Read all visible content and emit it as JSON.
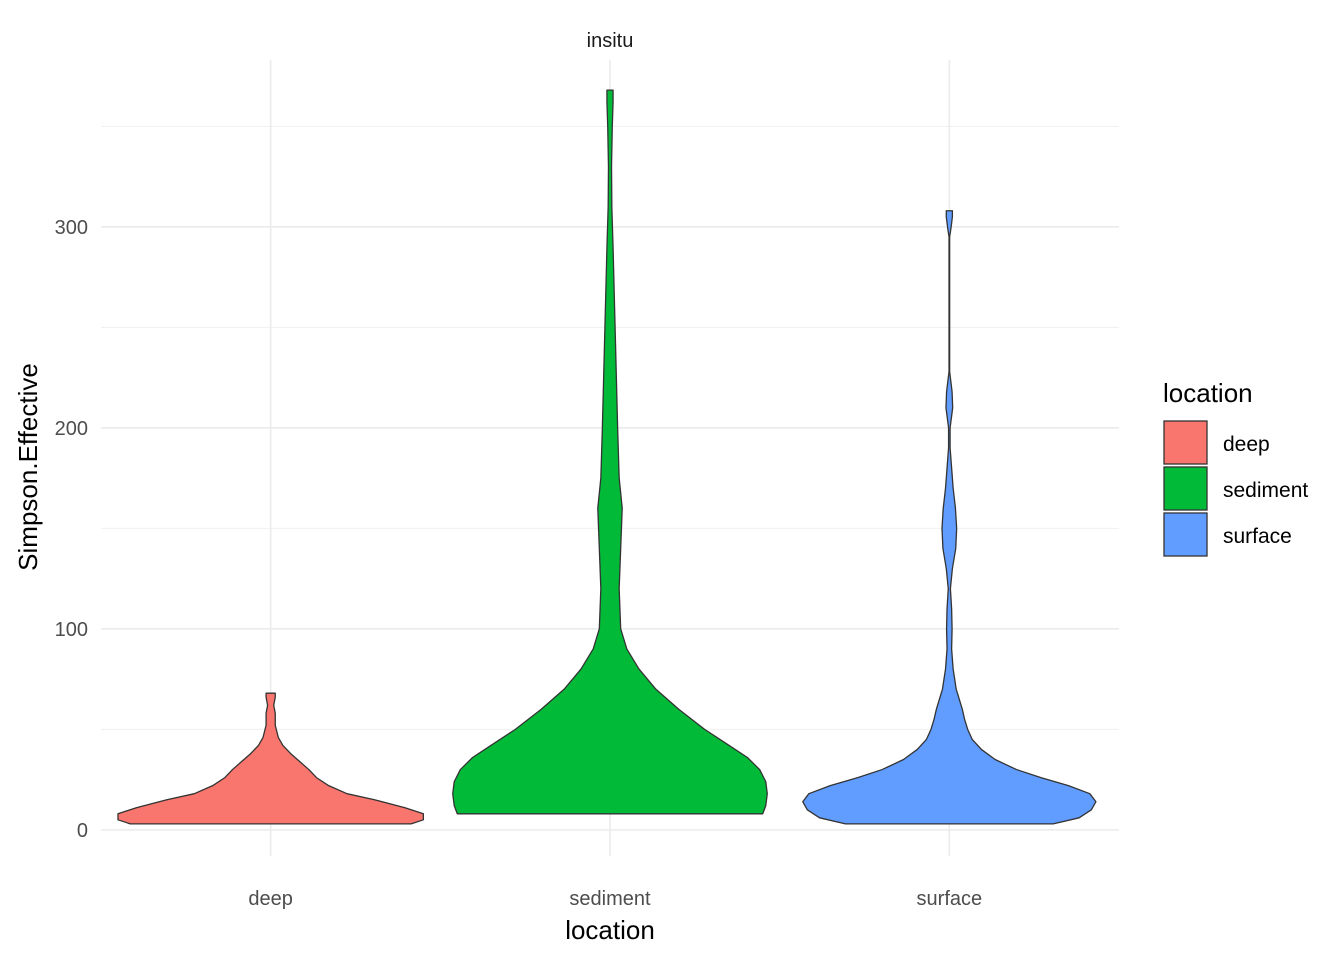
{
  "chart_data": {
    "type": "violin",
    "facet_title": "insitu",
    "xlabel": "location",
    "ylabel": "Simpson.Effective",
    "categories": [
      "deep",
      "sediment",
      "surface"
    ],
    "ylim": [
      -13,
      383
    ],
    "yticks": [
      0,
      100,
      200,
      300
    ],
    "grid": true,
    "legend": {
      "title": "location",
      "position": "right",
      "entries": [
        {
          "label": "deep",
          "color": "#F8766D"
        },
        {
          "label": "sediment",
          "color": "#00BA38"
        },
        {
          "label": "surface",
          "color": "#619CFF"
        }
      ]
    },
    "series": [
      {
        "name": "deep",
        "color": "#F8766D",
        "range": [
          3,
          68
        ],
        "density": [
          [
            3,
            0.92
          ],
          [
            5,
            1.0
          ],
          [
            8,
            1.0
          ],
          [
            11,
            0.88
          ],
          [
            15,
            0.68
          ],
          [
            18,
            0.5
          ],
          [
            22,
            0.38
          ],
          [
            26,
            0.3
          ],
          [
            30,
            0.25
          ],
          [
            34,
            0.19
          ],
          [
            38,
            0.13
          ],
          [
            42,
            0.08
          ],
          [
            46,
            0.05
          ],
          [
            52,
            0.03
          ],
          [
            58,
            0.03
          ],
          [
            62,
            0.02
          ],
          [
            66,
            0.03
          ],
          [
            68,
            0.03
          ]
        ]
      },
      {
        "name": "sediment",
        "color": "#00BA38",
        "range": [
          8,
          368
        ],
        "density": [
          [
            8,
            1.0
          ],
          [
            12,
            1.02
          ],
          [
            18,
            1.03
          ],
          [
            24,
            1.02
          ],
          [
            30,
            0.98
          ],
          [
            36,
            0.9
          ],
          [
            42,
            0.78
          ],
          [
            50,
            0.62
          ],
          [
            60,
            0.45
          ],
          [
            70,
            0.3
          ],
          [
            80,
            0.19
          ],
          [
            90,
            0.11
          ],
          [
            100,
            0.07
          ],
          [
            120,
            0.06
          ],
          [
            140,
            0.07
          ],
          [
            160,
            0.08
          ],
          [
            175,
            0.06
          ],
          [
            200,
            0.05
          ],
          [
            230,
            0.04
          ],
          [
            260,
            0.03
          ],
          [
            290,
            0.02
          ],
          [
            310,
            0.012
          ],
          [
            330,
            0.01
          ],
          [
            350,
            0.015
          ],
          [
            362,
            0.02
          ],
          [
            368,
            0.02
          ]
        ]
      },
      {
        "name": "surface",
        "color": "#619CFF",
        "range": [
          3,
          308
        ],
        "density": [
          [
            3,
            0.68
          ],
          [
            6,
            0.85
          ],
          [
            10,
            0.93
          ],
          [
            14,
            0.96
          ],
          [
            18,
            0.92
          ],
          [
            22,
            0.78
          ],
          [
            26,
            0.6
          ],
          [
            30,
            0.44
          ],
          [
            35,
            0.3
          ],
          [
            40,
            0.21
          ],
          [
            45,
            0.15
          ],
          [
            50,
            0.12
          ],
          [
            55,
            0.1
          ],
          [
            60,
            0.085
          ],
          [
            65,
            0.065
          ],
          [
            70,
            0.045
          ],
          [
            80,
            0.025
          ],
          [
            90,
            0.015
          ],
          [
            100,
            0.018
          ],
          [
            110,
            0.015
          ],
          [
            120,
            0.007
          ],
          [
            130,
            0.02
          ],
          [
            140,
            0.042
          ],
          [
            150,
            0.048
          ],
          [
            160,
            0.04
          ],
          [
            170,
            0.025
          ],
          [
            180,
            0.015
          ],
          [
            190,
            0.005
          ],
          [
            200,
            0.005
          ],
          [
            210,
            0.022
          ],
          [
            218,
            0.018
          ],
          [
            228,
            0.002
          ],
          [
            240,
            0.002
          ],
          [
            260,
            0.002
          ],
          [
            280,
            0.002
          ],
          [
            295,
            0.002
          ],
          [
            300,
            0.012
          ],
          [
            305,
            0.02
          ],
          [
            308,
            0.02
          ]
        ]
      }
    ]
  }
}
